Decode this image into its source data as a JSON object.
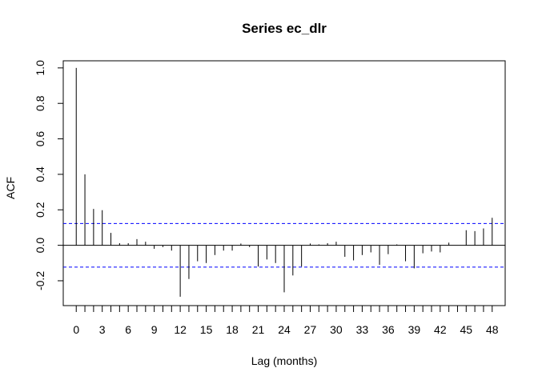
{
  "chart_data": {
    "type": "bar",
    "title": "Series  ec_dlr",
    "xlabel": "Lag (months)",
    "ylabel": "ACF",
    "xlim": [
      -1.5,
      49.5
    ],
    "ylim": [
      -0.34,
      1.04
    ],
    "x_ticks": [
      0,
      3,
      6,
      9,
      12,
      15,
      18,
      21,
      24,
      27,
      30,
      33,
      36,
      39,
      42,
      45,
      48
    ],
    "y_ticks": [
      -0.2,
      0.0,
      0.2,
      0.4,
      0.6,
      0.8,
      1.0
    ],
    "y_tick_labels": [
      "-0.2",
      "0.0",
      "0.2",
      "0.4",
      "0.6",
      "0.8",
      "1.0"
    ],
    "confidence_bound": 0.123,
    "confidence_color": "#0000ff",
    "lags": [
      0,
      1,
      2,
      3,
      4,
      5,
      6,
      7,
      8,
      9,
      10,
      11,
      12,
      13,
      14,
      15,
      16,
      17,
      18,
      19,
      20,
      21,
      22,
      23,
      24,
      25,
      26,
      27,
      28,
      29,
      30,
      31,
      32,
      33,
      34,
      35,
      36,
      37,
      38,
      39,
      40,
      41,
      42,
      43,
      44,
      45,
      46,
      47,
      48
    ],
    "acf": [
      1.0,
      0.4,
      0.205,
      0.198,
      0.07,
      0.012,
      0.012,
      0.035,
      0.02,
      -0.02,
      -0.01,
      -0.03,
      -0.29,
      -0.19,
      -0.09,
      -0.1,
      -0.055,
      -0.03,
      -0.03,
      0.01,
      -0.01,
      -0.12,
      -0.08,
      -0.1,
      -0.265,
      -0.17,
      -0.12,
      0.01,
      0.005,
      0.012,
      0.02,
      -0.065,
      -0.085,
      -0.055,
      -0.04,
      -0.11,
      -0.05,
      0.005,
      -0.09,
      -0.13,
      -0.045,
      -0.035,
      -0.04,
      0.015,
      0.0,
      0.085,
      0.08,
      0.095,
      0.155
    ]
  }
}
